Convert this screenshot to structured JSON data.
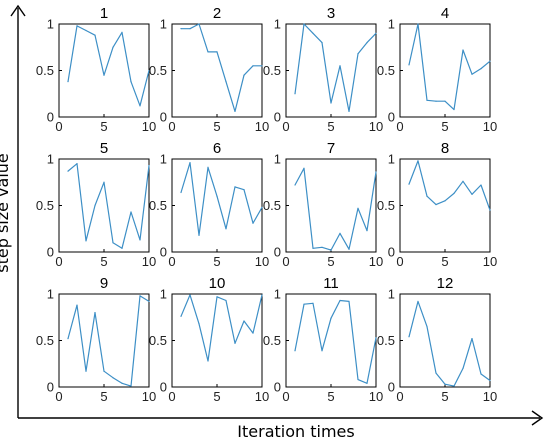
{
  "figure": {
    "xlabel": "Iteration times",
    "ylabel": "step size value",
    "line_color": "#3d8fc6",
    "axis_color": "#000000"
  },
  "chart_data": [
    {
      "type": "line",
      "title": "1",
      "x": [
        1,
        2,
        3,
        4,
        5,
        6,
        7,
        8,
        9,
        10
      ],
      "values": [
        0.38,
        0.98,
        0.93,
        0.88,
        0.45,
        0.75,
        0.91,
        0.38,
        0.12,
        0.5
      ],
      "xlim": [
        0,
        10
      ],
      "ylim": [
        0,
        1
      ],
      "xticks": [
        "0",
        "5",
        "10"
      ],
      "yticks": [
        "0",
        "0.5",
        "1"
      ]
    },
    {
      "type": "line",
      "title": "2",
      "x": [
        1,
        2,
        3,
        4,
        5,
        6,
        7,
        8,
        9,
        10
      ],
      "values": [
        0.95,
        0.95,
        1.0,
        0.7,
        0.7,
        0.38,
        0.06,
        0.45,
        0.55,
        0.55
      ],
      "xlim": [
        0,
        10
      ],
      "ylim": [
        0,
        1
      ],
      "xticks": [
        "0",
        "5",
        "10"
      ],
      "yticks": [
        "0",
        "0.5",
        "1"
      ]
    },
    {
      "type": "line",
      "title": "3",
      "x": [
        1,
        2,
        3,
        4,
        5,
        6,
        7,
        8,
        9,
        10
      ],
      "values": [
        0.25,
        1.0,
        0.9,
        0.8,
        0.15,
        0.55,
        0.06,
        0.68,
        0.8,
        0.9
      ],
      "xlim": [
        0,
        10
      ],
      "ylim": [
        0,
        1
      ],
      "xticks": [
        "0",
        "5",
        "10"
      ],
      "yticks": [
        "0",
        "0.5",
        "1"
      ]
    },
    {
      "type": "line",
      "title": "4",
      "x": [
        1,
        2,
        3,
        4,
        5,
        6,
        7,
        8,
        9,
        10
      ],
      "values": [
        0.56,
        1.0,
        0.18,
        0.17,
        0.17,
        0.08,
        0.72,
        0.46,
        0.52,
        0.6
      ],
      "xlim": [
        0,
        10
      ],
      "ylim": [
        0,
        1
      ],
      "xticks": [
        "0",
        "5",
        "10"
      ],
      "yticks": [
        "0",
        "0.5",
        "1"
      ]
    },
    {
      "type": "line",
      "title": "5",
      "x": [
        1,
        2,
        3,
        4,
        5,
        6,
        7,
        8,
        9,
        10
      ],
      "values": [
        0.87,
        0.95,
        0.12,
        0.5,
        0.75,
        0.1,
        0.04,
        0.43,
        0.13,
        0.93
      ],
      "xlim": [
        0,
        10
      ],
      "ylim": [
        0,
        1
      ],
      "xticks": [
        "0",
        "5",
        "10"
      ],
      "yticks": [
        "0",
        "0.5",
        "1"
      ]
    },
    {
      "type": "line",
      "title": "6",
      "x": [
        1,
        2,
        3,
        4,
        5,
        6,
        7,
        8,
        9,
        10
      ],
      "values": [
        0.64,
        0.96,
        0.18,
        0.91,
        0.6,
        0.25,
        0.7,
        0.67,
        0.31,
        0.48
      ],
      "xlim": [
        0,
        10
      ],
      "ylim": [
        0,
        1
      ],
      "xticks": [
        "0",
        "5",
        "10"
      ],
      "yticks": [
        "0",
        "0.5",
        "1"
      ]
    },
    {
      "type": "line",
      "title": "7",
      "x": [
        1,
        2,
        3,
        4,
        5,
        6,
        7,
        8,
        9,
        10
      ],
      "values": [
        0.72,
        0.9,
        0.04,
        0.05,
        0.02,
        0.2,
        0.03,
        0.47,
        0.23,
        0.86
      ],
      "xlim": [
        0,
        10
      ],
      "ylim": [
        0,
        1
      ],
      "xticks": [
        "0",
        "5",
        "10"
      ],
      "yticks": [
        "0",
        "0.5",
        "1"
      ]
    },
    {
      "type": "line",
      "title": "8",
      "x": [
        1,
        2,
        3,
        4,
        5,
        6,
        7,
        8,
        9,
        10
      ],
      "values": [
        0.73,
        0.98,
        0.6,
        0.51,
        0.55,
        0.63,
        0.76,
        0.62,
        0.72,
        0.45
      ],
      "xlim": [
        0,
        10
      ],
      "ylim": [
        0,
        1
      ],
      "xticks": [
        "0",
        "5",
        "10"
      ],
      "yticks": [
        "0",
        "0.5",
        "1"
      ]
    },
    {
      "type": "line",
      "title": "9",
      "x": [
        1,
        2,
        3,
        4,
        5,
        6,
        7,
        8,
        9,
        10
      ],
      "values": [
        0.52,
        0.88,
        0.17,
        0.8,
        0.17,
        0.1,
        0.04,
        0.01,
        0.98,
        0.92
      ],
      "xlim": [
        0,
        10
      ],
      "ylim": [
        0,
        1
      ],
      "xticks": [
        "0",
        "5",
        "10"
      ],
      "yticks": [
        "0",
        "0.5",
        "1"
      ]
    },
    {
      "type": "line",
      "title": "10",
      "x": [
        1,
        2,
        3,
        4,
        5,
        6,
        7,
        8,
        9,
        10
      ],
      "values": [
        0.76,
        0.99,
        0.68,
        0.28,
        0.97,
        0.93,
        0.47,
        0.71,
        0.58,
        0.99
      ],
      "xlim": [
        0,
        10
      ],
      "ylim": [
        0,
        1
      ],
      "xticks": [
        "0",
        "5",
        "10"
      ],
      "yticks": [
        "0",
        "0.5",
        "1"
      ]
    },
    {
      "type": "line",
      "title": "11",
      "x": [
        1,
        2,
        3,
        4,
        5,
        6,
        7,
        8,
        9,
        10
      ],
      "values": [
        0.39,
        0.89,
        0.9,
        0.39,
        0.74,
        0.93,
        0.92,
        0.08,
        0.04,
        0.53
      ],
      "xlim": [
        0,
        10
      ],
      "ylim": [
        0,
        1
      ],
      "xticks": [
        "0",
        "5",
        "10"
      ],
      "yticks": [
        "0",
        "0.5",
        "1"
      ]
    },
    {
      "type": "line",
      "title": "12",
      "x": [
        1,
        2,
        3,
        4,
        5,
        6,
        7,
        8,
        9,
        10
      ],
      "values": [
        0.54,
        0.92,
        0.65,
        0.15,
        0.03,
        0.01,
        0.2,
        0.52,
        0.14,
        0.07
      ],
      "xlim": [
        0,
        10
      ],
      "ylim": [
        0,
        1
      ],
      "xticks": [
        "0",
        "5",
        "10"
      ],
      "yticks": [
        "0",
        "0.5",
        "1"
      ]
    }
  ]
}
